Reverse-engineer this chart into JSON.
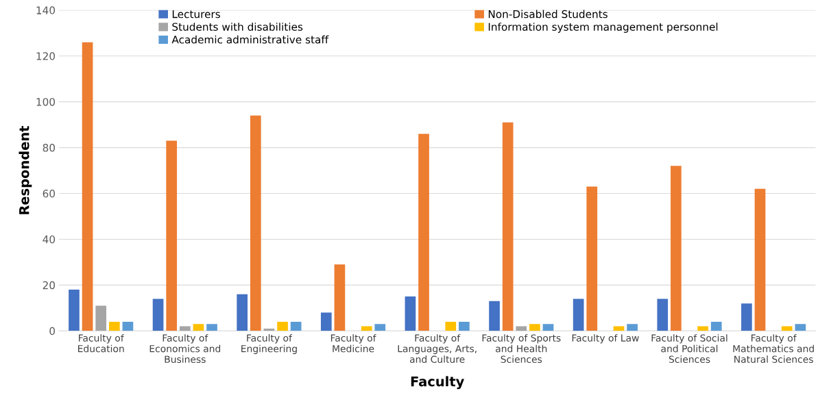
{
  "chart_data": {
    "type": "bar",
    "xlabel": "Faculty",
    "ylabel": "Respondent",
    "categories": [
      "Faculty of\nEducation",
      "Faculty of\nEconomics and\nBusiness",
      "Faculty of\nEngineering",
      "Faculty of\nMedicine",
      "Faculty of\nLanguages, Arts,\nand Culture",
      "Faculty of Sports\nand Health\nSciences",
      "Faculty of Law",
      "Faculty of Social\nand Political\nSciences",
      "Faculty of\nMathematics and\nNatural Sciences"
    ],
    "series": [
      {
        "name": "Lecturers",
        "color": "#4472c4",
        "values": [
          18,
          14,
          16,
          8,
          15,
          13,
          14,
          14,
          12
        ]
      },
      {
        "name": "Non-Disabled Students",
        "color": "#ed7d31",
        "values": [
          126,
          83,
          94,
          29,
          86,
          91,
          63,
          72,
          62
        ]
      },
      {
        "name": "Students with disabilities",
        "color": "#a5a5a5",
        "values": [
          11,
          2,
          1,
          0,
          0,
          2,
          0,
          0,
          0
        ]
      },
      {
        "name": "Information system management personnel",
        "color": "#ffc000",
        "values": [
          4,
          3,
          4,
          2,
          4,
          3,
          2,
          2,
          2
        ]
      },
      {
        "name": "Academic administrative staff",
        "color": "#5b9bd5",
        "values": [
          4,
          3,
          4,
          3,
          4,
          3,
          3,
          4,
          3
        ]
      }
    ],
    "ylim": [
      0,
      140
    ],
    "yticks": [
      0,
      20,
      40,
      60,
      80,
      100,
      120,
      140
    ],
    "grid": "y",
    "legend": "top"
  }
}
